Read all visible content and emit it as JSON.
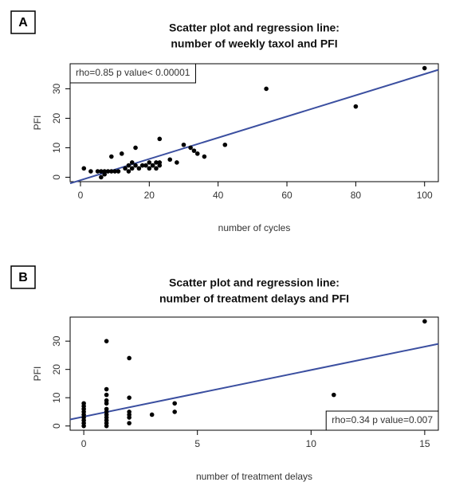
{
  "chart_data": [
    {
      "type": "scatter",
      "panel": "A",
      "title": [
        "Scatter plot and regression line:",
        "number of weekly taxol and PFI"
      ],
      "x_label": "number of cycles",
      "y_label": "PFI",
      "annotation": "rho=0.85 p value< 0.00001",
      "legend_loc": "topleft",
      "x": [
        1,
        3,
        5,
        6,
        6,
        7,
        7,
        8,
        9,
        9,
        10,
        11,
        12,
        13,
        14,
        14,
        15,
        15,
        16,
        16,
        17,
        18,
        19,
        20,
        20,
        21,
        21,
        22,
        22,
        23,
        23,
        23,
        26,
        28,
        30,
        32,
        33,
        34,
        36,
        42,
        54,
        80,
        100
      ],
      "values": [
        3,
        2,
        2,
        2,
        0,
        2,
        1,
        2,
        7,
        2,
        2,
        2,
        8,
        3,
        4,
        2,
        5,
        3,
        4,
        10,
        3,
        4,
        4,
        3,
        5,
        4,
        4,
        5,
        3,
        13,
        5,
        4,
        6,
        5,
        11,
        10,
        9,
        8,
        7,
        11,
        30,
        24,
        37
      ],
      "color": "#000000",
      "regression": {
        "intercept": -1,
        "slope": 0.36,
        "color": "#3b4fa0"
      },
      "xlim": [
        -3,
        104
      ],
      "ylim": [
        -1.5,
        38.5
      ],
      "xticks": [
        0,
        20,
        40,
        60,
        80,
        100
      ],
      "yticks": [
        0,
        10,
        20,
        30
      ]
    },
    {
      "type": "scatter",
      "panel": "B",
      "title": [
        "Scatter plot and regression line:",
        "number of treatment delays and PFI"
      ],
      "x_label": "number of treatment delays",
      "y_label": "PFI",
      "annotation": "rho=0.34 p value=0.007",
      "legend_loc": "bottomright",
      "x": [
        0,
        0,
        0,
        0,
        0,
        0,
        0,
        0,
        0,
        1,
        1,
        1,
        1,
        1,
        1,
        1,
        1,
        1,
        1,
        1,
        1,
        2,
        2,
        2,
        2,
        2,
        2,
        3,
        4,
        4,
        11,
        15
      ],
      "values": [
        0,
        1,
        2,
        3,
        4,
        5,
        6,
        7,
        8,
        0,
        1,
        2,
        3,
        4,
        5,
        6,
        8,
        9,
        11,
        13,
        30,
        1,
        3,
        4,
        5,
        10,
        24,
        4,
        5,
        8,
        11,
        37
      ],
      "color": "#000000",
      "regression": {
        "intercept": 3.3,
        "slope": 1.65,
        "color": "#3b4fa0"
      },
      "xlim": [
        -0.6,
        15.6
      ],
      "ylim": [
        -1.5,
        38.5
      ],
      "xticks": [
        0,
        5,
        10,
        15
      ],
      "yticks": [
        0,
        10,
        20,
        30
      ]
    }
  ]
}
